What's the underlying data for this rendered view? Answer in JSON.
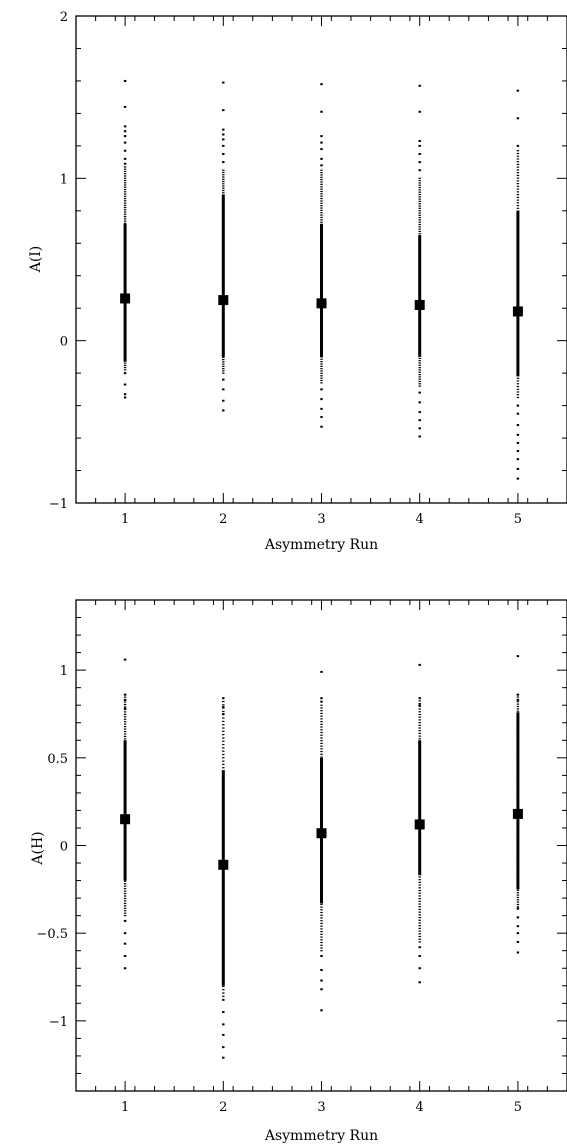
{
  "chart_data": [
    {
      "type": "scatter",
      "xlabel": "Asymmetry Run",
      "ylabel": "A(I)",
      "xlim": [
        0.5,
        5.5
      ],
      "ylim": [
        -1,
        2
      ],
      "xticks": [
        "1",
        "2",
        "3",
        "4",
        "5"
      ],
      "yticks": [
        "−1",
        "0",
        "1",
        "2"
      ],
      "ytick_values": [
        -1,
        0,
        1,
        2
      ],
      "grid": false,
      "points": [
        {
          "x": 1,
          "mean": 0.26,
          "err_low": -0.13,
          "err_high": 0.72
        },
        {
          "x": 2,
          "mean": 0.25,
          "err_low": -0.1,
          "err_high": 0.9
        },
        {
          "x": 3,
          "mean": 0.23,
          "err_low": -0.1,
          "err_high": 0.72
        },
        {
          "x": 4,
          "mean": 0.22,
          "err_low": -0.1,
          "err_high": 0.65
        },
        {
          "x": 5,
          "mean": 0.18,
          "err_low": -0.22,
          "err_high": 0.8
        }
      ],
      "runs": [
        {
          "x": 1,
          "min": -0.35,
          "max": 1.6,
          "dense_low": -0.18,
          "dense_high": 1.07,
          "outliers": [
            1.6,
            1.44,
            1.32,
            1.29,
            1.26,
            1.22,
            1.17,
            1.12,
            1.09,
            -0.2,
            -0.27,
            -0.33,
            -0.35
          ]
        },
        {
          "x": 2,
          "min": -0.43,
          "max": 1.59,
          "dense_low": -0.2,
          "dense_high": 1.05,
          "outliers": [
            1.59,
            1.42,
            1.3,
            1.27,
            1.24,
            1.2,
            1.15,
            1.1,
            -0.24,
            -0.3,
            -0.37,
            -0.43
          ]
        },
        {
          "x": 3,
          "min": -0.53,
          "max": 1.58,
          "dense_low": -0.26,
          "dense_high": 1.05,
          "outliers": [
            1.58,
            1.41,
            1.26,
            1.22,
            1.18,
            1.12,
            1.08,
            -0.3,
            -0.36,
            -0.42,
            -0.47,
            -0.53
          ]
        },
        {
          "x": 4,
          "min": -0.59,
          "max": 1.57,
          "dense_low": -0.28,
          "dense_high": 1.0,
          "outliers": [
            1.57,
            1.41,
            1.23,
            1.2,
            1.15,
            1.1,
            1.05,
            -0.32,
            -0.38,
            -0.44,
            -0.49,
            -0.54,
            -0.59
          ]
        },
        {
          "x": 5,
          "min": -0.85,
          "max": 1.54,
          "dense_low": -0.35,
          "dense_high": 1.17,
          "outliers": [
            1.54,
            1.37,
            1.2,
            -0.4,
            -0.45,
            -0.52,
            -0.58,
            -0.63,
            -0.68,
            -0.73,
            -0.79,
            -0.85
          ]
        }
      ]
    },
    {
      "type": "scatter",
      "xlabel": "Asymmetry Run",
      "ylabel": "A(H)",
      "xlim": [
        0.5,
        5.5
      ],
      "ylim": [
        -1.4,
        1.4
      ],
      "xticks": [
        "1",
        "2",
        "3",
        "4",
        "5"
      ],
      "yticks": [
        "−1",
        "−0.5",
        "0",
        "0.5",
        "1"
      ],
      "ytick_values": [
        -1,
        -0.5,
        0,
        0.5,
        1
      ],
      "grid": false,
      "points": [
        {
          "x": 1,
          "mean": 0.15,
          "err_low": -0.2,
          "err_high": 0.6
        },
        {
          "x": 2,
          "mean": -0.11,
          "err_low": -0.8,
          "err_high": 0.43
        },
        {
          "x": 3,
          "mean": 0.07,
          "err_low": -0.33,
          "err_high": 0.5
        },
        {
          "x": 4,
          "mean": 0.12,
          "err_low": -0.17,
          "err_high": 0.6
        },
        {
          "x": 5,
          "mean": 0.18,
          "err_low": -0.25,
          "err_high": 0.76
        }
      ],
      "runs": [
        {
          "x": 1,
          "min": -0.7,
          "max": 1.06,
          "dense_low": -0.4,
          "dense_high": 0.86,
          "outliers": [
            1.06,
            0.86,
            0.83,
            0.78,
            -0.43,
            -0.5,
            -0.56,
            -0.63,
            -0.7
          ]
        },
        {
          "x": 2,
          "min": -1.21,
          "max": 0.84,
          "dense_low": -0.86,
          "dense_high": 0.84,
          "outliers": [
            0.84,
            0.79,
            0.75,
            -0.88,
            -0.95,
            -1.02,
            -1.08,
            -1.15,
            -1.21
          ]
        },
        {
          "x": 3,
          "min": -0.94,
          "max": 0.99,
          "dense_low": -0.6,
          "dense_high": 0.8,
          "outliers": [
            0.99,
            0.84,
            0.82,
            -0.63,
            -0.71,
            -0.77,
            -0.82,
            -0.94
          ]
        },
        {
          "x": 4,
          "min": -0.78,
          "max": 1.03,
          "dense_low": -0.55,
          "dense_high": 0.84,
          "outliers": [
            1.03,
            0.84,
            0.8,
            -0.58,
            -0.63,
            -0.7,
            -0.78
          ]
        },
        {
          "x": 5,
          "min": -0.61,
          "max": 1.08,
          "dense_low": -0.35,
          "dense_high": 0.86,
          "outliers": [
            1.08,
            0.86,
            0.83,
            -0.36,
            -0.41,
            -0.46,
            -0.5,
            -0.55,
            -0.61
          ]
        }
      ]
    }
  ]
}
